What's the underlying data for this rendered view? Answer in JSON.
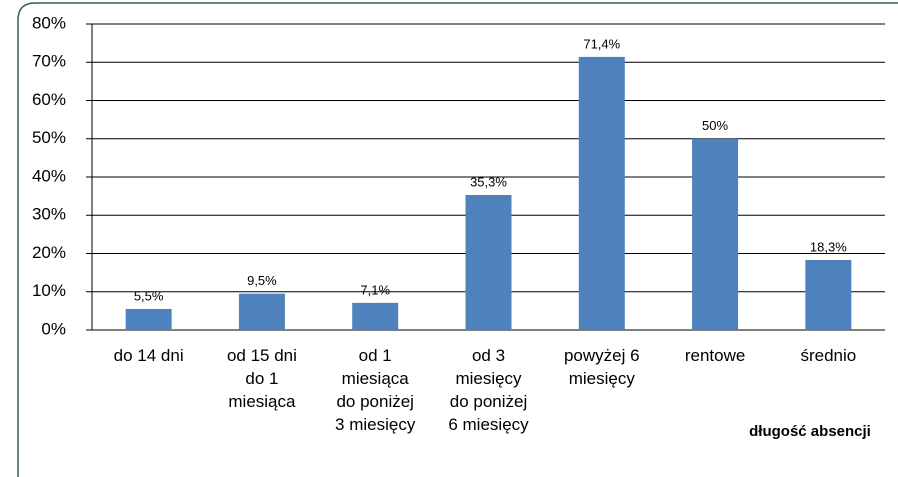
{
  "chart_data": {
    "type": "bar",
    "categories": [
      "do 14 dni",
      "od 15 dni\ndo 1\nmiesiąca",
      "od 1\nmiesiąca\ndo poniżej\n3 miesięcy",
      "od 3\nmiesięcy\ndo poniżej\n6 miesięcy",
      "powyżej 6\nmiesięcy",
      "rentowe",
      "średnio"
    ],
    "values": [
      5.5,
      9.5,
      7.1,
      35.3,
      71.4,
      50,
      18.3
    ],
    "value_labels": [
      "5,5%",
      "9,5%",
      "7,1%",
      "35,3%",
      "71,4%",
      "50%",
      "18,3%"
    ],
    "color": "#4f81bd",
    "x_label": "długość absencji",
    "ylim": [
      0,
      80
    ],
    "yticks": [
      {
        "value": 0,
        "label": "0%"
      },
      {
        "value": 10,
        "label": "10%"
      },
      {
        "value": 20,
        "label": "20%"
      },
      {
        "value": 30,
        "label": "30%"
      },
      {
        "value": 40,
        "label": "40%"
      },
      {
        "value": 50,
        "label": "50%"
      },
      {
        "value": 60,
        "label": "60%"
      },
      {
        "value": 70,
        "label": "70%"
      },
      {
        "value": 80,
        "label": "80%"
      }
    ],
    "grid": true
  }
}
